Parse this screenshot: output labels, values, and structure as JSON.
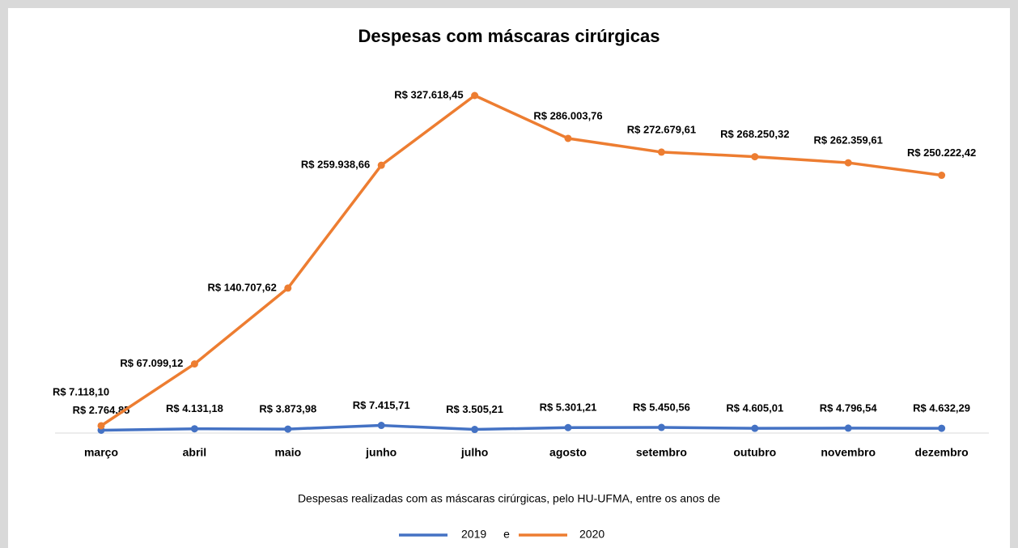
{
  "chart_data": {
    "type": "line",
    "title": "Despesas com máscaras cirúrgicas",
    "subtitle": "Despesas realizadas com as máscaras cirúrgicas, pelo HU-UFMA, entre os anos de",
    "legend_joiner": "e",
    "categories": [
      "março",
      "abril",
      "maio",
      "junho",
      "julho",
      "agosto",
      "setembro",
      "outubro",
      "novembro",
      "dezembro"
    ],
    "series": [
      {
        "name": "2019",
        "color": "#4472c4",
        "values": [
          2764.85,
          4131.18,
          3873.98,
          7415.71,
          3505.21,
          5301.21,
          5450.56,
          4605.01,
          4796.54,
          4632.29
        ],
        "value_labels": [
          "R$ 2.764,85",
          "R$ 4.131,18",
          "R$ 3.873,98",
          "R$ 7.415,71",
          "R$ 3.505,21",
          "R$ 5.301,21",
          "R$ 5.450,56",
          "R$ 4.605,01",
          "R$ 4.796,54",
          "R$ 4.632,29"
        ]
      },
      {
        "name": "2020",
        "color": "#ed7d31",
        "values": [
          7118.1,
          67099.12,
          140707.62,
          259938.66,
          327618.45,
          286003.76,
          272679.61,
          268250.32,
          262359.61,
          250222.42
        ],
        "value_labels": [
          "R$ 7.118,10",
          "R$ 67.099,12",
          "R$ 140.707,62",
          "R$ 259.938,66",
          "R$ 327.618,45",
          "R$ 286.003,76",
          "R$ 272.679,61",
          "R$ 268.250,32",
          "R$ 262.359,61",
          "R$ 250.222,42"
        ]
      }
    ]
  }
}
